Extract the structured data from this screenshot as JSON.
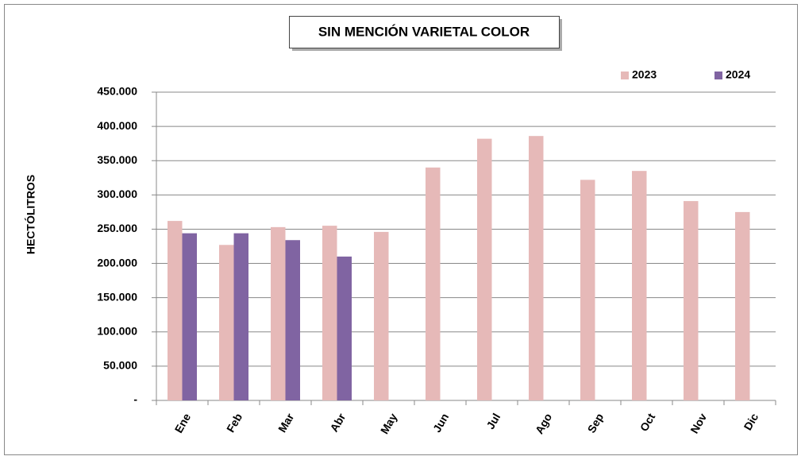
{
  "chart_data": {
    "type": "bar",
    "title": "SIN MENCIÓN VARIETAL COLOR",
    "y_label": "HECTÓLITROS",
    "categories": [
      "Ene",
      "Feb",
      "Mar",
      "Abr",
      "May",
      "Jun",
      "Jul",
      "Ago",
      "Sep",
      "Oct",
      "Nov",
      "Dic"
    ],
    "series": [
      {
        "name": "2023",
        "color": "#e6b9b8",
        "values": [
          262000,
          227000,
          253000,
          255000,
          246000,
          340000,
          382000,
          386000,
          322000,
          335000,
          291000,
          275000
        ]
      },
      {
        "name": "2024",
        "color": "#8064a2",
        "values": [
          244000,
          244000,
          234000,
          210000,
          null,
          null,
          null,
          null,
          null,
          null,
          null,
          null
        ]
      }
    ],
    "ylim": [
      0,
      450000
    ],
    "yticks": [
      {
        "value": 0,
        "label": "-"
      },
      {
        "value": 50000,
        "label": "50.000"
      },
      {
        "value": 100000,
        "label": "100.000"
      },
      {
        "value": 150000,
        "label": "150.000"
      },
      {
        "value": 200000,
        "label": "200.000"
      },
      {
        "value": 250000,
        "label": "250.000"
      },
      {
        "value": 300000,
        "label": "300.000"
      },
      {
        "value": 350000,
        "label": "350.000"
      },
      {
        "value": 400000,
        "label": "400.000"
      },
      {
        "value": 450000,
        "label": "450.000"
      }
    ],
    "grid": true,
    "legend": "top-right"
  }
}
